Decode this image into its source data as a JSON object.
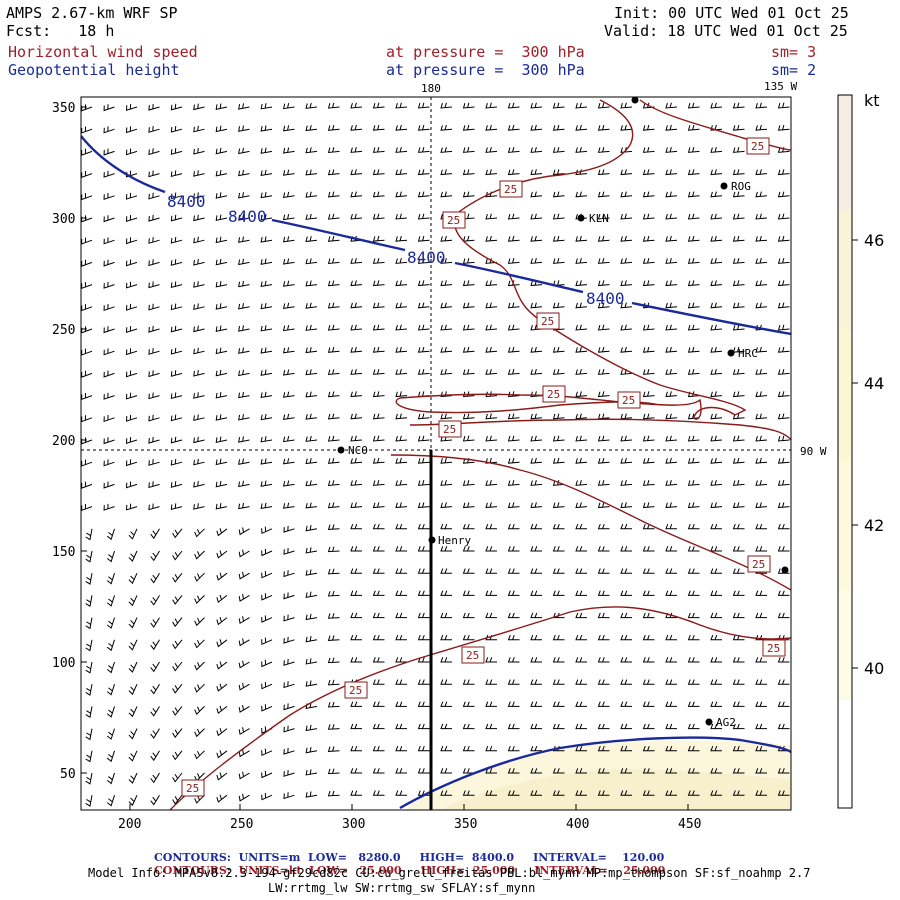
{
  "header": {
    "line1_left": "AMPS 2.67-km WRF SP",
    "line2_left": "Fcst:   18 h",
    "line1_right": "Init: 00 UTC Wed 01 Oct 25",
    "line2_right": "Valid: 18 UTC Wed 01 Oct 25",
    "field1_name": "Horizontal wind speed",
    "field1_level": "at pressure =  300 hPa",
    "field1_sm": "sm= 3",
    "field2_name": "Geopotential height",
    "field2_level": "at pressure =  300 hPa",
    "field2_sm": "sm= 2"
  },
  "map_labels": {
    "lon_180": "180",
    "lon_135w": "135 W",
    "lon_90w": "90 W"
  },
  "stations": [
    {
      "id": "ROG"
    },
    {
      "id": "KLN"
    },
    {
      "id": "HRC"
    },
    {
      "id": "NCO"
    },
    {
      "id": "Henry"
    },
    {
      "id": "AG2"
    }
  ],
  "contour_labels": {
    "height": "8400",
    "wind": "25"
  },
  "colorbar": {
    "unit": "kt",
    "ticks": [
      "46",
      "44",
      "42",
      "40"
    ],
    "colors": [
      "#f4eee4",
      "#f9f3d8",
      "#fbf7d4",
      "#fcf9dc",
      "#fdfbe6",
      "#ffffff"
    ]
  },
  "axes": {
    "x_ticks": [
      "200",
      "250",
      "300",
      "350",
      "400",
      "450"
    ],
    "y_ticks": [
      "350",
      "300",
      "250",
      "200",
      "150",
      "100",
      "50"
    ]
  },
  "footer": {
    "c1_label": "CONTOURS:",
    "c1_units": "UNITS=m",
    "c1_low": "LOW=   8280.0",
    "c1_high": "HIGH=  8400.0",
    "c1_interval": "INTERVAL=    120.00",
    "c2_label": "CONTOURS:",
    "c2_units": "UNITS=kt",
    "c2_low": "LOW=   25.000",
    "c2_high": "HIGH=  25.000",
    "c2_interval": "INTERVAL=    25.000",
    "model_info": "Model Info: MPASv8.2.3-194-gf29cd82c CU:cu_grell_freitas PBL:bl_mynn MP:mp_thompson SF:sf_noahmp 2.7",
    "model_info2": "LW:rrtmg_lw SW:rrtmg_sw SFLAY:sf_mynn"
  },
  "colors": {
    "height_contour": "#1a2a9a",
    "wind_contour": "#8b1a1a",
    "barb": "#000000"
  }
}
